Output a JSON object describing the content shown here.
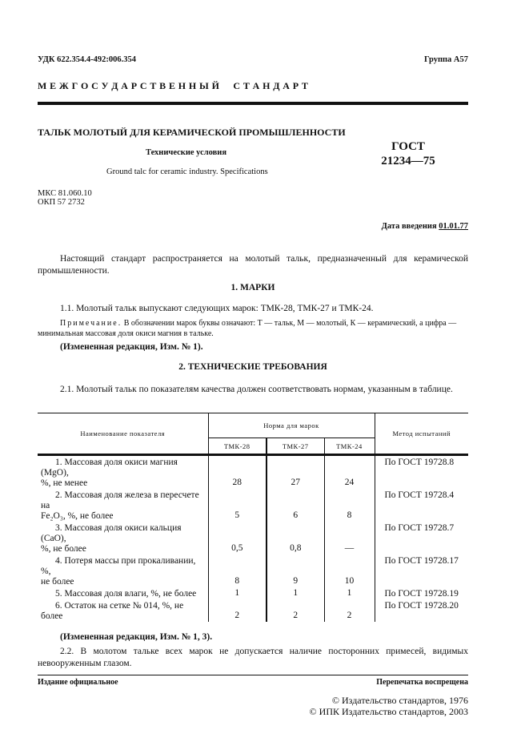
{
  "header": {
    "udk": "УДК 622.354.4-492:006.354",
    "group": "Группа А57",
    "banner": "М Е Ж Г О С У Д А Р С Т В Е Н Н Ы Й     С Т А Н Д А Р Т"
  },
  "title": {
    "main": "ТАЛЬК МОЛОТЫЙ ДЛЯ КЕРАМИЧЕСКОЙ ПРОМЫШЛЕННОСТИ",
    "sub": "Технические условия",
    "english": "Ground talc for ceramic industry. Specifications",
    "gost": "ГОСТ",
    "gost_number": "21234—75"
  },
  "codes": {
    "mks": "МКС 81.060.10",
    "okp": "ОКП 57 2732"
  },
  "date": {
    "label": "Дата введения ",
    "value": "01.01.77"
  },
  "intro": "Настоящий стандарт распространяется на молотый тальк, предназначенный для керамической промышленности.",
  "s1": {
    "heading": "1. МАРКИ",
    "p1": "1.1. Молотый тальк выпускают следующих марок: ТМК-28, ТМК-27 и ТМК-24.",
    "note_label": "Примечание.",
    "note": " В обозначении марок буквы означают: Т — тальк, М — молотый, К — керамический, а цифра — минимальная массовая доля окиси магния в тальке.",
    "change": "(Измененная редакция, Изм. № 1)."
  },
  "s2": {
    "heading": "2. ТЕХНИЧЕСКИЕ ТРЕБОВАНИЯ",
    "p1": "2.1. Молотый тальк по показателям качества должен соответствовать нормам, указанным в таблице.",
    "change": "(Измененная редакция, Изм. № 1, 3).",
    "p2": "2.2. В молотом тальке всех марок не допускается наличие посторонних примесей, видимых невооруженным глазом."
  },
  "table": {
    "h_name": "Наименование показателя",
    "h_norm": "Норма для марок",
    "h_method": "Метод испытаний",
    "grades": [
      "ТМК-28",
      "ТМК-27",
      "ТМК-24"
    ],
    "rows": [
      {
        "l1": "1. Массовая доля окиси магния (MgO),",
        "l2": "%, не менее",
        "v": [
          "28",
          "27",
          "24"
        ],
        "m": "По ГОСТ 19728.8"
      },
      {
        "l1": "2. Массовая доля железа в пересчете на",
        "l2": "Fe₂O₃, %, не более",
        "v": [
          "5",
          "6",
          "8"
        ],
        "m": "По ГОСТ 19728.4"
      },
      {
        "l1": "3. Массовая доля окиси кальция (CaO),",
        "l2": "%, не более",
        "v": [
          "0,5",
          "0,8",
          "—"
        ],
        "m": "По ГОСТ 19728.7"
      },
      {
        "l1": "4. Потеря массы при прокаливании, %,",
        "l2": "не более",
        "v": [
          "8",
          "9",
          "10"
        ],
        "m": "По ГОСТ 19728.17"
      },
      {
        "l1": "5. Массовая доля влаги, %, не более",
        "l2": "",
        "v": [
          "1",
          "1",
          "1"
        ],
        "m": "По ГОСТ 19728.19"
      },
      {
        "l1": "6. Остаток на сетке № 014, %, не более",
        "l2": "",
        "v": [
          "2",
          "2",
          "2"
        ],
        "m": "По ГОСТ 19728.20"
      }
    ]
  },
  "footer": {
    "official": "Издание официальное",
    "reprint": "Перепечатка воспрещена",
    "copy1": "© Издательство стандартов, 1976",
    "copy2": "© ИПК Издательство стандартов, 2003"
  }
}
